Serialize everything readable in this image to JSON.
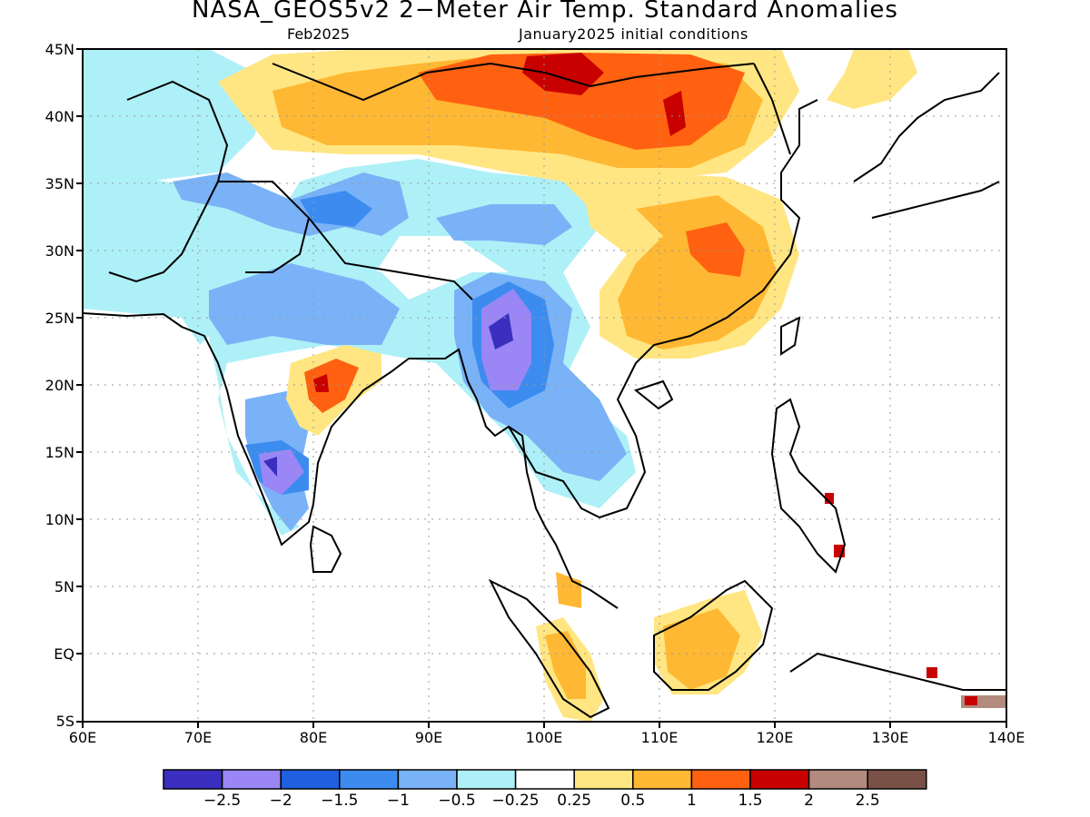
{
  "title": "NASA_GEOS5v2 2−Meter Air Temp. Standard Anomalies",
  "subtitle_left": "Feb2025",
  "subtitle_right": "January2025 initial conditions",
  "lat_labels": [
    "45N",
    "40N",
    "35N",
    "30N",
    "25N",
    "20N",
    "15N",
    "10N",
    "5N",
    "EQ",
    "5S"
  ],
  "lon_labels": [
    "60E",
    "70E",
    "80E",
    "90E",
    "100E",
    "110E",
    "120E",
    "130E",
    "140E"
  ],
  "colorbar": {
    "colors": [
      "#3a2fbf",
      "#9a86f5",
      "#1f5fe0",
      "#3c8cf0",
      "#79b2f7",
      "#aef0f7",
      "#ffffff",
      "#ffe682",
      "#ffb833",
      "#ff6111",
      "#c80000",
      "#b28a7e",
      "#7a5147"
    ],
    "labels": [
      "−2.5",
      "−2",
      "−1.5",
      "−1",
      "−0.5",
      "−0.25",
      "0.25",
      "0.5",
      "1",
      "1.5",
      "2",
      "2.5"
    ]
  }
}
